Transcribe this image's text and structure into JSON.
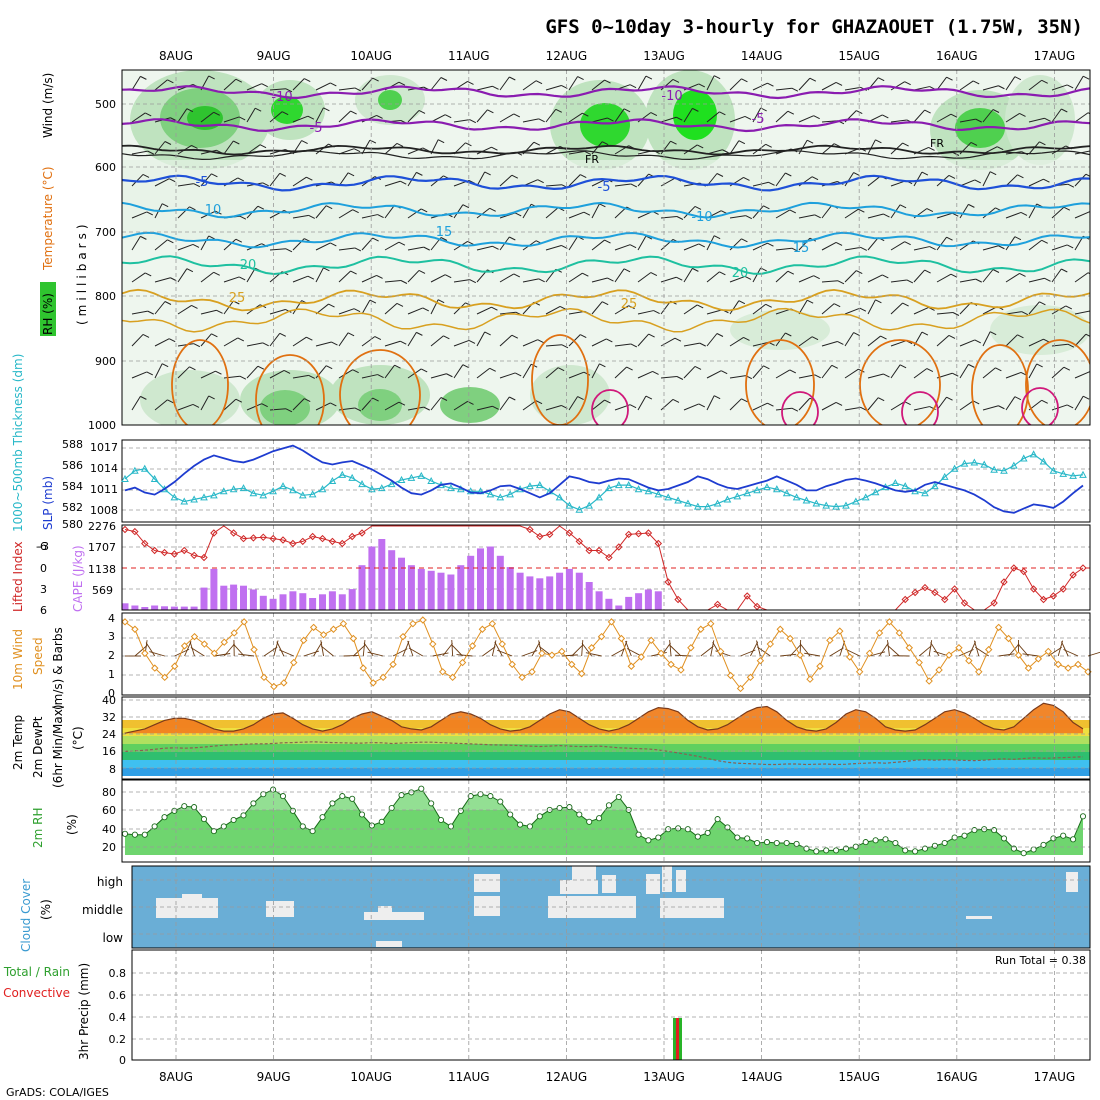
{
  "title": "GFS 0~10day 3-hourly for GHAZAOUET (1.75W, 35N)",
  "credit": "GrADS: COLA/IGES",
  "dates": [
    "8AUG",
    "9AUG",
    "10AUG",
    "11AUG",
    "12AUG",
    "13AUG",
    "14AUG",
    "15AUG",
    "16AUG",
    "17AUG"
  ],
  "colors": {
    "rh_green": "#2fc42f",
    "temp_purple": "#8a1cb0",
    "temp_blue": "#1e50d8",
    "temp_cyan": "#1ea0dc",
    "temp_teal": "#1ec0a0",
    "temp_gold": "#d8a020",
    "temp_orange": "#e07010",
    "slp_blue": "#1e3cd0",
    "thick_cyan": "#28b8c8",
    "cape_purple": "#c070f0",
    "li_red": "#d02828",
    "wind_orange": "#e09020",
    "cloud_blue": "#6aaed6",
    "precip_green": "#28b428",
    "precip_red": "#e02020"
  },
  "panels": {
    "upper": {
      "ylabel_wind": "Wind (m/s)",
      "ylabel_temp": "Temperature (°C)",
      "ylabel_rh": "RH (%)",
      "ylabel_mb": "(millibars)",
      "yticks": [
        "500",
        "600",
        "700",
        "800",
        "900",
        "1000"
      ],
      "contour_labels": [
        "-10",
        "-5",
        "FR",
        "-5",
        "10",
        "15",
        "20",
        "25",
        "-10",
        "-5",
        "FR",
        "-5",
        "-10",
        "15",
        "20",
        "25"
      ]
    },
    "slp": {
      "ylabel_thick": "1000~500mb Thickness (dm)",
      "ylabel_slp": "SLP (mb)",
      "thick_ticks": [
        "580",
        "582",
        "584",
        "586",
        "588"
      ],
      "slp_ticks": [
        "1008",
        "1011",
        "1014",
        "1017"
      ]
    },
    "cape": {
      "ylabel_li": "Lifted Index",
      "ylabel_cape": "CAPE (J/kg)",
      "li_ticks": [
        "-6",
        "-3",
        "0",
        "3",
        "6"
      ],
      "cape_ticks": [
        "569",
        "1138",
        "1707",
        "2276"
      ]
    },
    "wind10": {
      "ylabel_1": "10m Wind",
      "ylabel_2": "Speed",
      "ylabel_3": "(m/s) & Barbs",
      "yticks": [
        "0",
        "1",
        "2",
        "3",
        "4"
      ]
    },
    "temp2m": {
      "ylabel_1": "2m Temp",
      "ylabel_2": "2m DewPt",
      "ylabel_3": "(6hr Min/Max)",
      "ylabel_4": "(°C)",
      "yticks": [
        "8",
        "16",
        "24",
        "32",
        "40"
      ]
    },
    "rh2m": {
      "ylabel_1": "2m RH",
      "ylabel_2": "(%)",
      "yticks": [
        "20",
        "40",
        "60",
        "80"
      ]
    },
    "cloud": {
      "ylabel_1": "Cloud Cover",
      "ylabel_2": "(%)",
      "levels": [
        "high",
        "middle",
        "low"
      ]
    },
    "precip": {
      "ylabel_1": "Total / Rain",
      "ylabel_2": "Convective",
      "ylabel_3": "3hr Precip (mm)",
      "yticks": [
        "0",
        "0.2",
        "0.4",
        "0.6",
        "0.8"
      ],
      "run_total": "Run Total = 0.38"
    }
  },
  "chart_data": [
    {
      "type": "line",
      "name": "SLP",
      "unit": "mb",
      "values": [
        1010.8,
        1011.2,
        1010.5,
        1010.2,
        1011,
        1012,
        1013.2,
        1014.3,
        1015.2,
        1015.8,
        1015.4,
        1015,
        1014.8,
        1015.2,
        1015.8,
        1016.4,
        1016.8,
        1017.2,
        1016.5,
        1015.6,
        1014.8,
        1014.5,
        1014.8,
        1015,
        1014.4,
        1013.8,
        1013,
        1012.2,
        1011.2,
        1010.4,
        1010.2,
        1010.8,
        1011.6,
        1011.8,
        1011.2,
        1010.5,
        1010.4,
        1010.8,
        1011.4,
        1011.5,
        1011,
        1010.4,
        1009.8,
        1010.4,
        1011.6,
        1012.8,
        1012.5,
        1012,
        1011.8,
        1012.2,
        1012.5,
        1012.4,
        1011.8,
        1011.2,
        1010.8,
        1011,
        1011.5,
        1012,
        1012.8,
        1012.4,
        1011.7,
        1011.2,
        1011,
        1011.4,
        1011.8,
        1012.2,
        1012.8,
        1012.2,
        1011.6,
        1010.8,
        1010.8,
        1011.4,
        1011.8,
        1012.3,
        1012.5,
        1012.2,
        1011.8,
        1011.3,
        1010.8,
        1010.6,
        1010.8,
        1011.6,
        1012,
        1011.6,
        1011.2,
        1010.8,
        1010.2,
        1009.4,
        1008.4,
        1007.8,
        1007.6,
        1008.2,
        1008.8,
        1008.6,
        1008.3,
        1009.2,
        1010.4,
        1011.5
      ]
    },
    {
      "type": "line",
      "name": "1000~500mb Thickness",
      "unit": "dm",
      "values": [
        584.2,
        585,
        585.2,
        584.2,
        583.2,
        582.4,
        582,
        582.2,
        582.4,
        582.6,
        583,
        583.2,
        583.3,
        582.8,
        582.6,
        583,
        583.5,
        583.1,
        582.6,
        582.7,
        583.2,
        584,
        584.6,
        584.3,
        583.7,
        583.2,
        583.3,
        583.7,
        584.1,
        584.3,
        584.5,
        584,
        583.6,
        583.3,
        583.2,
        583,
        583,
        582.7,
        582.4,
        582.7,
        583.2,
        583.5,
        583.6,
        583,
        582.4,
        581.6,
        581.2,
        581.6,
        582.4,
        583.3,
        583.6,
        583.6,
        583.2,
        583,
        582.7,
        582.4,
        582.1,
        581.8,
        581.5,
        581.5,
        581.8,
        582.2,
        582.5,
        582.8,
        583.1,
        583.4,
        583.2,
        582.8,
        582.4,
        582.1,
        581.8,
        581.6,
        581.5,
        581.6,
        582,
        582.4,
        582.9,
        583.4,
        583.8,
        583.5,
        583,
        582.8,
        583.5,
        584.4,
        585.2,
        585.7,
        585.8,
        585.6,
        585.1,
        585,
        585.5,
        586.2,
        586.6,
        585.9,
        585,
        584.7,
        584.5,
        584.6
      ]
    },
    {
      "type": "bar",
      "name": "CAPE",
      "unit": "J/kg",
      "values": [
        180,
        120,
        80,
        120,
        100,
        90,
        90,
        90,
        600,
        1100,
        650,
        680,
        650,
        550,
        380,
        300,
        420,
        500,
        450,
        320,
        420,
        500,
        420,
        560,
        1200,
        1700,
        1900,
        1600,
        1400,
        1200,
        1100,
        1050,
        1000,
        950,
        1200,
        1450,
        1650,
        1700,
        1450,
        1150,
        1000,
        900,
        850,
        900,
        1000,
        1100,
        1000,
        750,
        500,
        300,
        120,
        350,
        450,
        550,
        500,
        0,
        0,
        0,
        0,
        0,
        0,
        0,
        0,
        0,
        0,
        0,
        0,
        0,
        0,
        0,
        0,
        0,
        0,
        0,
        0,
        0,
        0,
        0,
        0,
        0,
        0,
        0,
        0,
        0,
        0,
        0,
        0,
        0,
        0,
        0,
        0,
        0,
        0,
        0,
        0,
        0,
        0,
        0
      ]
    },
    {
      "type": "line",
      "name": "Lifted Index",
      "values": [
        -5.5,
        -5.2,
        -3.5,
        -2.5,
        -2.2,
        -2,
        -2.5,
        -1.8,
        -1.5,
        -5,
        -6,
        -5,
        -4.2,
        -4.3,
        -4.4,
        -4.2,
        -4,
        -3.5,
        -3.8,
        -4.5,
        -4.2,
        -3.8,
        -3.5,
        -4.5,
        -5,
        -6,
        -6,
        -6,
        -6,
        -6,
        -6,
        -6,
        -6,
        -6,
        -6,
        -6,
        -6,
        -6,
        -6,
        -6,
        -6,
        -5.5,
        -4.5,
        -4.8,
        -6,
        -5,
        -3.8,
        -2.5,
        -2.5,
        -1.5,
        -3,
        -4.8,
        -4.9,
        -5,
        -3.5,
        2,
        4.5,
        6,
        6,
        6,
        5.2,
        6,
        6,
        4,
        5.5,
        6,
        6,
        6,
        6,
        6,
        6,
        6,
        6,
        6,
        6,
        6,
        6,
        6,
        6,
        4.5,
        3.5,
        2.8,
        3.5,
        4.5,
        3,
        5,
        6,
        6,
        5,
        2,
        0,
        0.5,
        3,
        4.5,
        4,
        3,
        1,
        0
      ]
    },
    {
      "type": "line",
      "name": "10m Wind Speed",
      "unit": "m/s",
      "values": [
        3.9,
        3.5,
        2.2,
        1.4,
        0.9,
        1.5,
        2.6,
        3.1,
        2.7,
        2.2,
        2.8,
        3.3,
        3.9,
        2.4,
        0.9,
        0.4,
        0.6,
        1.7,
        2.9,
        3.6,
        3.2,
        3.5,
        3.8,
        3.0,
        1.4,
        0.6,
        0.9,
        1.6,
        3.1,
        3.8,
        4.0,
        2.7,
        1.2,
        0.9,
        1.7,
        2.6,
        3.5,
        3.8,
        2.7,
        1.6,
        0.9,
        1.2,
        2.2,
        2.1,
        2.3,
        1.6,
        1.1,
        2.5,
        3.1,
        3.9,
        3.0,
        1.5,
        2.0,
        2.9,
        2.2,
        1.6,
        1.3,
        2.5,
        3.5,
        3.8,
        2.3,
        1.0,
        0.3,
        0.9,
        1.8,
        2.7,
        3.5,
        3.0,
        2.1,
        0.8,
        1.5,
        2.9,
        3.4,
        2.0,
        1.2,
        2.2,
        3.3,
        3.9,
        3.3,
        2.5,
        1.7,
        0.7,
        1.3,
        2.1,
        2.5,
        1.8,
        1.2,
        2.4,
        3.6,
        3.0,
        2.1,
        1.4,
        1.9,
        2.3,
        1.6,
        1.4,
        1.6,
        1.2
      ]
    },
    {
      "type": "area",
      "name": "2m Temp",
      "unit": "°C",
      "values": [
        24,
        25,
        26,
        28,
        30,
        31,
        31,
        30,
        28,
        26,
        25,
        25,
        26,
        28,
        31,
        33,
        33.5,
        31,
        28,
        26,
        25,
        26,
        28,
        31,
        33,
        34,
        32,
        30,
        27,
        26,
        25.5,
        27,
        30,
        33,
        34,
        33,
        31,
        28,
        26,
        25,
        25.5,
        27,
        30,
        33,
        35,
        34,
        31,
        28,
        26,
        25,
        26,
        28,
        31,
        34,
        36,
        35.5,
        34,
        30,
        27,
        25.5,
        26,
        28,
        31,
        34,
        36,
        36.5,
        34,
        30,
        27,
        25.5,
        25,
        26,
        29,
        33,
        35,
        34,
        31,
        27,
        25.5,
        25,
        25.5,
        28,
        31,
        34,
        35,
        33.5,
        31,
        28,
        26,
        25.5,
        27,
        31,
        35,
        38,
        37,
        34,
        29,
        26
      ]
    },
    {
      "type": "line",
      "name": "2m DewPt",
      "unit": "°C",
      "values": [
        15.5,
        15.8,
        16,
        16.5,
        17,
        17.2,
        17,
        17.2,
        17.5,
        18,
        18.4,
        18.6,
        18.8,
        19,
        19,
        19.2,
        19.5,
        19.6,
        19.8,
        20,
        19.8,
        19.6,
        19.5,
        19.4,
        19.4,
        19.6,
        19.5,
        19.2,
        19.4,
        19.6,
        19.8,
        19.8,
        19.6,
        19.4,
        19.2,
        19,
        18.8,
        18.6,
        18.5,
        18.4,
        18.2,
        18,
        17.8,
        18,
        18.2,
        18,
        17.8,
        17.8,
        18,
        17.6,
        17.2,
        17,
        16.8,
        16.6,
        16.2,
        15.5,
        14.8,
        14,
        13.2,
        12.2,
        11.2,
        10.4,
        10,
        9.8,
        9.6,
        9.4,
        9.4,
        9.6,
        9.6,
        9.4,
        9.5,
        9.6,
        9.4,
        9.5,
        9.8,
        10,
        10.2,
        10,
        10.4,
        10.8,
        11.4,
        11.6,
        11.4,
        11.6,
        11.5,
        11.3,
        11.2,
        11.4,
        11.8,
        12,
        11.8,
        12.2,
        12.5,
        12.3,
        12.4,
        12.6,
        12.8,
        13
      ]
    },
    {
      "type": "area",
      "name": "2m RH",
      "unit": "%",
      "values": [
        37,
        36,
        36,
        45,
        55,
        62,
        67,
        66,
        53,
        40,
        45,
        52,
        57,
        70,
        80,
        85,
        78,
        62,
        45,
        40,
        55,
        70,
        78,
        75,
        58,
        46,
        50,
        65,
        79,
        82,
        86,
        70,
        52,
        45,
        62,
        78,
        80,
        78,
        72,
        58,
        47,
        45,
        56,
        63,
        65,
        66,
        58,
        50,
        54,
        68,
        77,
        63,
        36,
        30,
        33,
        42,
        43,
        42,
        34,
        38,
        53,
        44,
        33,
        32,
        27,
        28,
        27,
        27,
        26,
        21,
        18,
        19,
        19,
        21,
        23,
        28,
        30,
        31,
        27,
        19,
        18,
        21,
        24,
        27,
        33,
        35,
        41,
        42,
        41,
        32,
        21,
        16,
        20,
        25,
        32,
        35,
        31,
        56
      ]
    },
    {
      "type": "bar",
      "name": "3hr Precip",
      "unit": "mm",
      "categories": [
        "13AUG"
      ],
      "values": [
        0.38
      ]
    }
  ]
}
